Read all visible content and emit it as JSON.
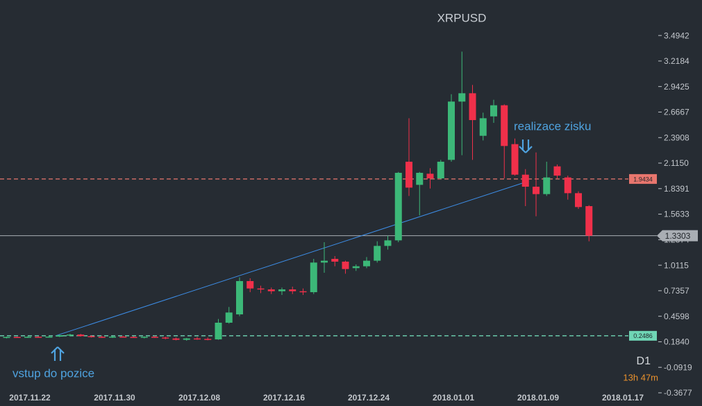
{
  "chart_data": {
    "type": "candlestick",
    "title": "XRPUSD",
    "timeframe": "D1",
    "countdown": "13h 47m",
    "categories": [
      null,
      null,
      "2017.11.22",
      null,
      null,
      null,
      null,
      null,
      null,
      null,
      "2017.11.30",
      null,
      null,
      null,
      null,
      null,
      null,
      null,
      "2017.12.08",
      null,
      null,
      null,
      null,
      null,
      null,
      null,
      "2017.12.16",
      null,
      null,
      null,
      null,
      null,
      null,
      null,
      "2017.12.24",
      null,
      null,
      null,
      null,
      null,
      null,
      null,
      "2018.01.01",
      null,
      null,
      null,
      null,
      null,
      null,
      null,
      "2018.01.09",
      null,
      null,
      null,
      null,
      null,
      null,
      null,
      "2018.01.17"
    ],
    "open": [
      0.232,
      0.236,
      0.232,
      0.238,
      0.234,
      0.24,
      0.255,
      0.262,
      0.245,
      0.238,
      0.232,
      0.24,
      0.236,
      0.232,
      0.238,
      0.23,
      0.22,
      0.205,
      0.22,
      0.215,
      0.21,
      0.39,
      0.48,
      0.84,
      0.76,
      0.75,
      0.73,
      0.75,
      0.73,
      0.72,
      1.04,
      1.08,
      1.05,
      0.98,
      1.0,
      1.06,
      1.22,
      1.28,
      2.13,
      1.88,
      2.0,
      1.95,
      2.15,
      2.78,
      2.87,
      2.41,
      2.62,
      2.74,
      2.32,
      1.99,
      1.86,
      1.78,
      2.08,
      1.96,
      1.79,
      1.65,
      null,
      null,
      null
    ],
    "high": [
      0.24,
      0.24,
      0.245,
      0.245,
      0.25,
      0.26,
      0.27,
      0.27,
      0.255,
      0.25,
      0.245,
      0.25,
      0.245,
      0.245,
      0.25,
      0.24,
      0.23,
      0.225,
      0.235,
      0.23,
      0.43,
      0.56,
      0.88,
      0.87,
      0.79,
      0.77,
      0.77,
      0.78,
      0.76,
      1.08,
      1.26,
      1.11,
      1.06,
      1.02,
      1.1,
      1.27,
      1.33,
      2.02,
      2.6,
      2.02,
      2.06,
      2.15,
      2.86,
      3.32,
      2.96,
      2.66,
      2.8,
      2.75,
      2.38,
      2.05,
      2.23,
      2.13,
      2.1,
      1.98,
      1.81,
      1.66,
      null,
      null,
      null
    ],
    "low": [
      0.22,
      0.225,
      0.225,
      0.23,
      0.23,
      0.235,
      0.245,
      0.24,
      0.23,
      0.225,
      0.225,
      0.23,
      0.225,
      0.22,
      0.225,
      0.21,
      0.2,
      0.195,
      0.205,
      0.2,
      0.205,
      0.38,
      0.46,
      0.72,
      0.71,
      0.7,
      0.69,
      0.7,
      0.69,
      0.7,
      0.93,
      1.0,
      0.92,
      0.95,
      0.98,
      1.04,
      1.18,
      1.26,
      1.76,
      1.55,
      1.84,
      1.94,
      2.13,
      2.2,
      2.15,
      2.36,
      2.55,
      1.95,
      1.98,
      1.65,
      1.54,
      1.76,
      1.95,
      1.72,
      1.62,
      1.27,
      null,
      null,
      null
    ],
    "close": [
      0.236,
      0.232,
      0.238,
      0.234,
      0.24,
      0.255,
      0.262,
      0.245,
      0.238,
      0.232,
      0.24,
      0.236,
      0.232,
      0.238,
      0.23,
      0.22,
      0.205,
      0.22,
      0.215,
      0.21,
      0.39,
      0.5,
      0.84,
      0.76,
      0.75,
      0.73,
      0.75,
      0.73,
      0.72,
      1.04,
      1.06,
      1.05,
      0.97,
      1.0,
      1.06,
      1.22,
      1.28,
      2.01,
      1.85,
      2.01,
      1.95,
      2.13,
      2.78,
      2.87,
      2.58,
      2.6,
      2.74,
      2.3,
      1.99,
      1.86,
      1.78,
      1.96,
      1.98,
      1.79,
      1.64,
      1.33,
      null,
      null,
      null
    ],
    "up_color": "#3cb878",
    "down_color": "#f0304a",
    "ylim": [
      -0.3677,
      3.8778
    ],
    "yticks": [
      3.4942,
      3.2184,
      2.9425,
      2.6667,
      2.3908,
      {
        "value": 2.115,
        "label": "2.1150"
      },
      1.8391,
      1.5633,
      1.2874,
      1.0115,
      0.7357,
      0.4598,
      {
        "value": 0.184,
        "label": "0.1840"
      },
      -0.0919,
      -0.3677
    ],
    "price_lines": [
      {
        "value": 1.9434,
        "color": "#e8766e",
        "style": "dashed"
      },
      {
        "value": 0.2486,
        "color": "#6fd6b5",
        "style": "dashed"
      },
      {
        "value": 1.3303,
        "color": "#a9aeb4",
        "style": "solid"
      }
    ],
    "trendline": {
      "from": 0.2486,
      "to": 1.91,
      "color": "#3d8ee8"
    },
    "entry_label": "vstup do pozice",
    "exit_label": "realizace zisku"
  }
}
